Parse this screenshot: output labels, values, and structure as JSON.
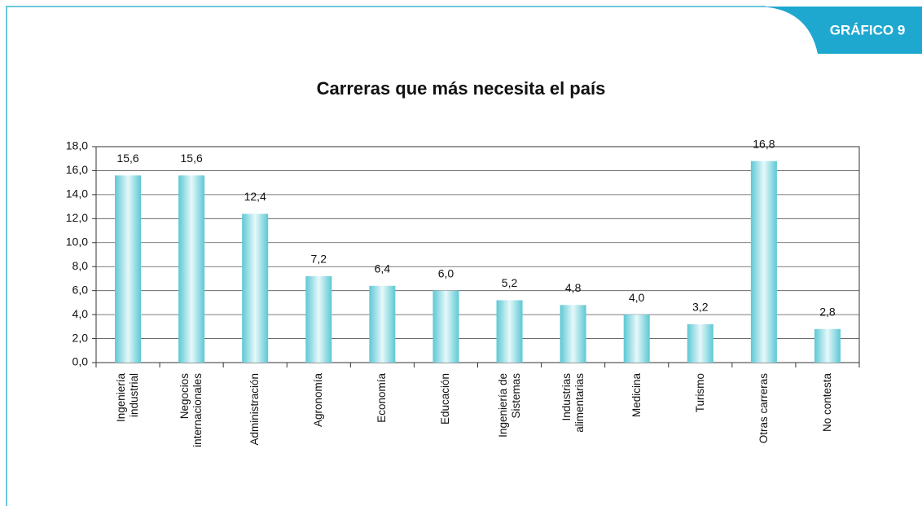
{
  "badge": "GRÁFICO 9",
  "chart_data": {
    "type": "bar",
    "title": "Carreras que más necesita el país",
    "categories": [
      "Ingeniería industrial",
      "Negocios internacionales",
      "Administración",
      "Agronomía",
      "Economía",
      "Educación",
      "Ingeniería de Sistemas",
      "Industrias alimentarias",
      "Medicina",
      "Turismo",
      "Otras carreras",
      "No contesta"
    ],
    "values": [
      15.6,
      15.6,
      12.4,
      7.2,
      6.4,
      6.0,
      5.2,
      4.8,
      4.0,
      3.2,
      16.8,
      2.8
    ],
    "value_labels": [
      "15,6",
      "15,6",
      "12,4",
      "7,2",
      "6,4",
      "6,0",
      "5,2",
      "4,8",
      "4,0",
      "3,2",
      "16,8",
      "2,8"
    ],
    "color": "#5cc8d4",
    "ylim": [
      0,
      18
    ],
    "yticks": [
      {
        "value": 0,
        "label": "0,0"
      },
      {
        "value": 2,
        "label": "2,0"
      },
      {
        "value": 4,
        "label": "4,0"
      },
      {
        "value": 6,
        "label": "6,0"
      },
      {
        "value": 8,
        "label": "8,0"
      },
      {
        "value": 10,
        "label": "10,0"
      },
      {
        "value": 12,
        "label": "12,0"
      },
      {
        "value": 14,
        "label": "14,0"
      },
      {
        "value": 16,
        "label": "16,0"
      },
      {
        "value": 18,
        "label": "18,0"
      }
    ],
    "grid": true
  }
}
